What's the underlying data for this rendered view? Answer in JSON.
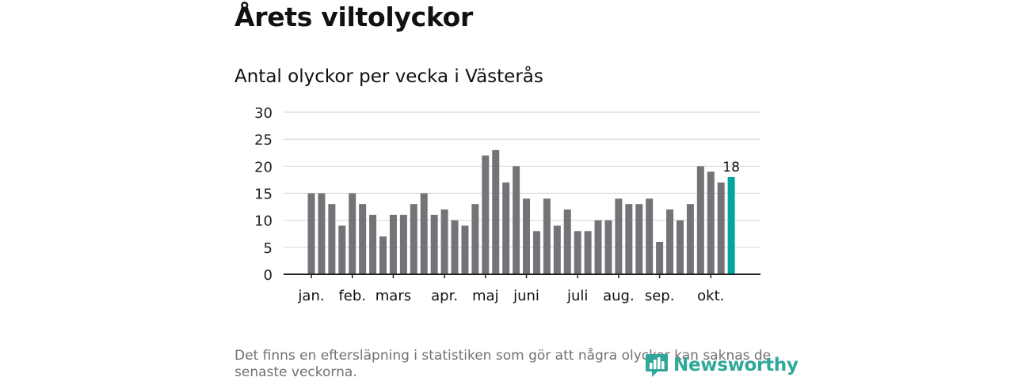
{
  "page": {
    "title": "Årets viltolyckor",
    "subtitle": "Antal olyckor per vecka i Västerås",
    "footnote": "Det finns en eftersläpning i statistiken som gör att några olyckor kan saknas de senaste veckorna.",
    "logo_text": "Newsworthy"
  },
  "colors": {
    "bar": "#747378",
    "highlight": "#00a79c",
    "grid": "#d9d9d9",
    "axis": "#222222",
    "logo": "#2fa89a"
  },
  "chart_data": {
    "type": "bar",
    "title": "Antal olyckor per vecka i Västerås",
    "xlabel": "",
    "ylabel": "",
    "ylim": [
      0,
      30
    ],
    "yticks": [
      0,
      5,
      10,
      15,
      20,
      25,
      30
    ],
    "grid": true,
    "values": [
      15,
      15,
      13,
      9,
      15,
      13,
      11,
      7,
      11,
      11,
      13,
      15,
      11,
      12,
      10,
      9,
      13,
      22,
      23,
      17,
      20,
      14,
      8,
      14,
      9,
      12,
      8,
      8,
      10,
      10,
      14,
      13,
      13,
      14,
      6,
      12,
      10,
      13,
      20,
      19,
      17,
      18
    ],
    "highlight_index": 41,
    "highlight_label": "18",
    "month_labels": [
      {
        "label": "jan.",
        "week_index": 0
      },
      {
        "label": "feb.",
        "week_index": 4
      },
      {
        "label": "mars",
        "week_index": 8
      },
      {
        "label": "apr.",
        "week_index": 13
      },
      {
        "label": "maj",
        "week_index": 17
      },
      {
        "label": "juni",
        "week_index": 21
      },
      {
        "label": "juli",
        "week_index": 26
      },
      {
        "label": "aug.",
        "week_index": 30
      },
      {
        "label": "sep.",
        "week_index": 34
      },
      {
        "label": "okt.",
        "week_index": 39
      }
    ]
  }
}
